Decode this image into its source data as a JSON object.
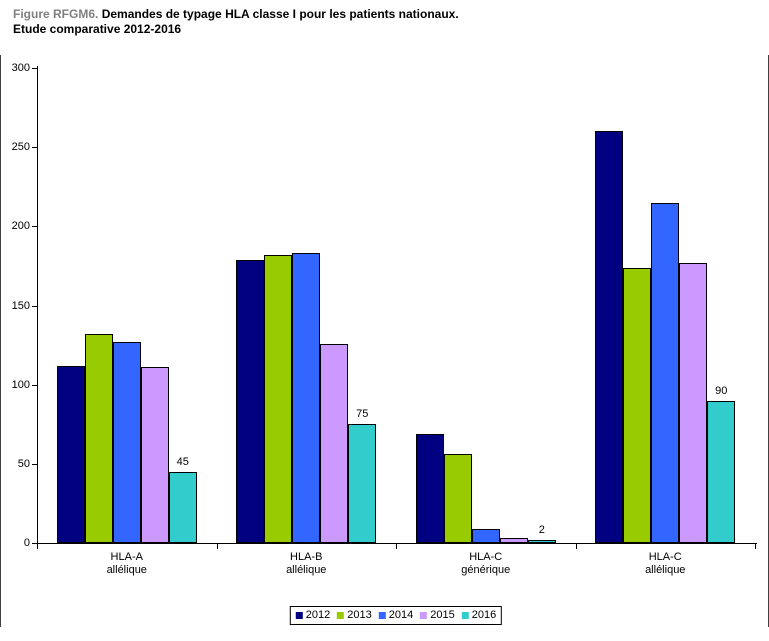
{
  "figure": {
    "label": "Figure RFGM6.",
    "title_line1": "Demandes de typage HLA classe I pour les patients nationaux.",
    "title_line2": "Etude comparative 2012-2016",
    "label_color": "#808080"
  },
  "chart_data": {
    "type": "bar",
    "title": "Demandes de typage HLA classe I pour les patients nationaux. Etude comparative 2012-2016",
    "categories": [
      [
        "HLA-A",
        "allélique"
      ],
      [
        "HLA-B",
        "allélique"
      ],
      [
        "HLA-C",
        "générique"
      ],
      [
        "HLA-C",
        "allélique"
      ]
    ],
    "series": [
      {
        "name": "2012",
        "color": "#000080",
        "values": [
          112,
          179,
          69,
          260
        ],
        "show_data_labels": false
      },
      {
        "name": "2013",
        "color": "#99CC00",
        "values": [
          132,
          182,
          56,
          174
        ],
        "show_data_labels": false
      },
      {
        "name": "2014",
        "color": "#3366FF",
        "values": [
          127,
          183,
          9,
          215
        ],
        "show_data_labels": false
      },
      {
        "name": "2015",
        "color": "#CC99FF",
        "values": [
          111,
          126,
          3,
          177
        ],
        "show_data_labels": false
      },
      {
        "name": "2016",
        "color": "#33CCCC",
        "values": [
          45,
          75,
          2,
          90
        ],
        "show_data_labels": true
      }
    ],
    "visible_data_labels": [
      "45",
      "75",
      "2",
      "90"
    ],
    "xlabel": "",
    "ylabel": "",
    "ylim": [
      0,
      300
    ],
    "ytick_step": 50,
    "ytick_labels": [
      "300",
      "250",
      "200",
      "150",
      "100",
      "50",
      "0"
    ],
    "grid": false,
    "legend_position": "bottom",
    "legend_entries": [
      "2012",
      "2013",
      "2014",
      "2015",
      "2016"
    ]
  }
}
